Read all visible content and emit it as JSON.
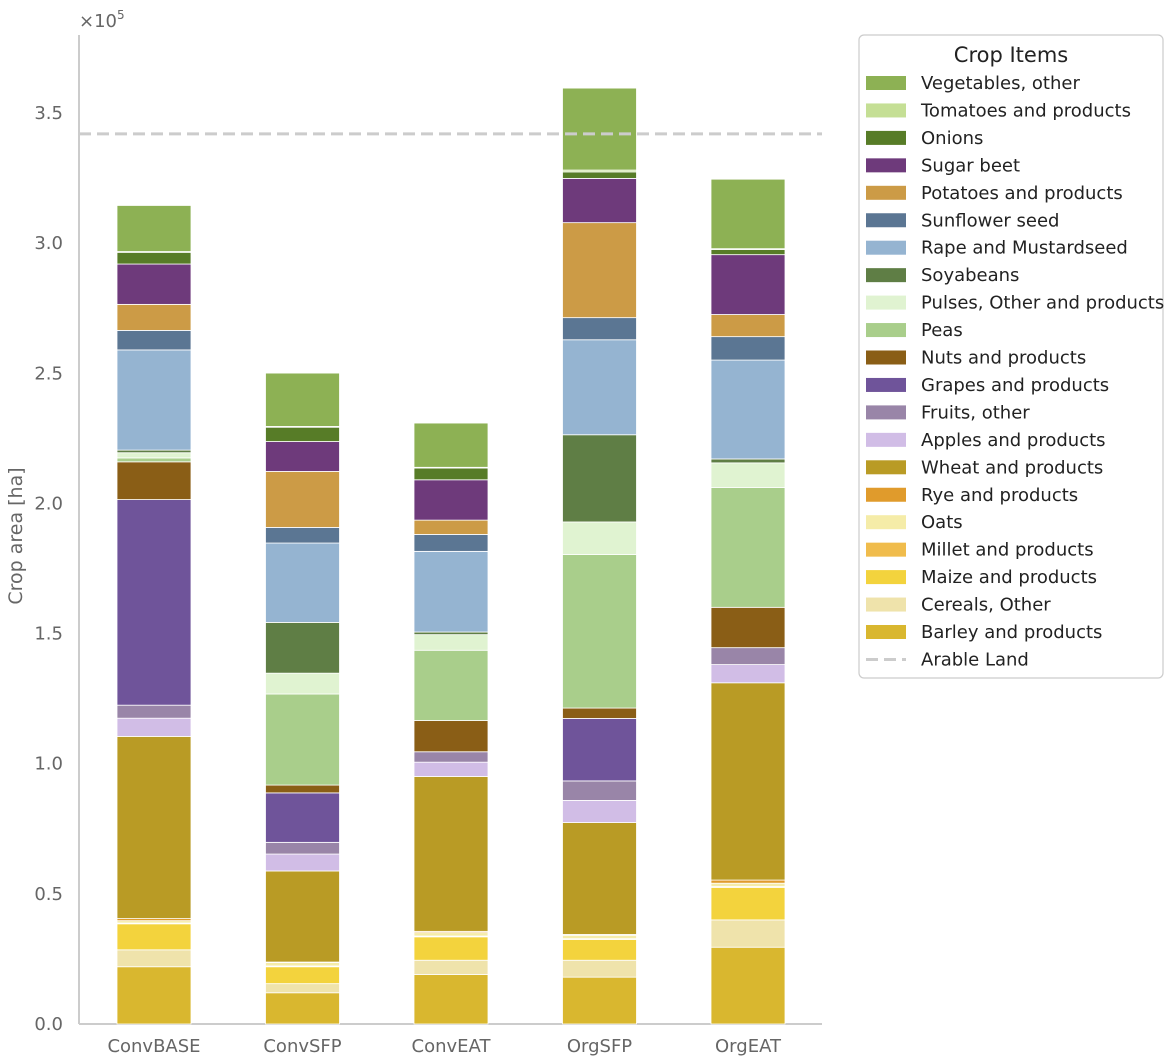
{
  "chart_data": {
    "type": "bar",
    "stacked": true,
    "title": "",
    "xlabel": "",
    "ylabel": "Crop area [ha]",
    "y_scale_label": "×10",
    "y_scale_exponent": "5",
    "ylim": [
      0,
      380000
    ],
    "yticks": [
      0,
      50000,
      100000,
      150000,
      200000,
      250000,
      300000,
      350000
    ],
    "ytick_labels": [
      "0.0",
      "0.5",
      "1.0",
      "1.5",
      "2.0",
      "2.5",
      "3.0",
      "3.5"
    ],
    "grid": false,
    "categories": [
      "ConvBASE",
      "ConvSFP",
      "ConvEAT",
      "OrgSFP",
      "OrgEAT"
    ],
    "reference_line": {
      "name": "Arable Land",
      "value": 342000,
      "color": "#cccccc",
      "style": "dashed"
    },
    "legend": {
      "title": "Crop Items",
      "position": "right"
    },
    "series": [
      {
        "name": "Barley and products",
        "color": "#d9b72f",
        "values": [
          22000,
          12000,
          19000,
          18000,
          29500
        ]
      },
      {
        "name": "Cereals, Other",
        "color": "#efe3ab",
        "values": [
          6500,
          3500,
          5500,
          6500,
          10500
        ]
      },
      {
        "name": "Maize and products",
        "color": "#f3d33d",
        "values": [
          10000,
          6500,
          9000,
          8000,
          12500
        ]
      },
      {
        "name": "Millet and products",
        "color": "#f0bc4c",
        "values": [
          300,
          300,
          300,
          300,
          300
        ]
      },
      {
        "name": "Oats",
        "color": "#f5eca8",
        "values": [
          900,
          1300,
          1300,
          1300,
          1300
        ]
      },
      {
        "name": "Rye and products",
        "color": "#e09b2c",
        "values": [
          800,
          200,
          500,
          300,
          1200
        ]
      },
      {
        "name": "Wheat and products",
        "color": "#b99b25",
        "values": [
          70000,
          35000,
          59500,
          43000,
          75800
        ]
      },
      {
        "name": "Apples and products",
        "color": "#d1bde6",
        "values": [
          7000,
          6500,
          5500,
          8500,
          7000
        ]
      },
      {
        "name": "Fruits, other",
        "color": "#9985a8",
        "values": [
          5000,
          4500,
          4000,
          7500,
          6500
        ]
      },
      {
        "name": "Grapes and products",
        "color": "#6f549a",
        "values": [
          79000,
          19000,
          0,
          24000,
          0
        ]
      },
      {
        "name": "Nuts and products",
        "color": "#8a5e16",
        "values": [
          14500,
          3000,
          12000,
          4000,
          15500
        ]
      },
      {
        "name": "Peas",
        "color": "#a9ce8b",
        "values": [
          1500,
          35000,
          27000,
          59000,
          46000
        ]
      },
      {
        "name": "Pulses, Other and products",
        "color": "#e0f3d1",
        "values": [
          2000,
          8000,
          6000,
          12500,
          9500
        ]
      },
      {
        "name": "Soyabeans",
        "color": "#5f7e45",
        "values": [
          1000,
          19500,
          1000,
          33500,
          1500
        ]
      },
      {
        "name": "Rape and Mustardseed",
        "color": "#95b4d1",
        "values": [
          38500,
          30500,
          31000,
          36500,
          38000
        ]
      },
      {
        "name": "Sunflower seed",
        "color": "#5b7693",
        "values": [
          7500,
          6000,
          6500,
          8500,
          9000
        ]
      },
      {
        "name": "Potatoes and products",
        "color": "#cc9b46",
        "values": [
          10000,
          21500,
          5500,
          36500,
          8500
        ]
      },
      {
        "name": "Sugar beet",
        "color": "#6e3a7b",
        "values": [
          15500,
          11500,
          15500,
          17000,
          23000
        ]
      },
      {
        "name": "Onions",
        "color": "#577c27",
        "values": [
          4500,
          5500,
          4500,
          2500,
          2000
        ]
      },
      {
        "name": "Tomatoes and products",
        "color": "#c5df95",
        "values": [
          300,
          300,
          300,
          700,
          300
        ]
      },
      {
        "name": "Vegetables, other",
        "color": "#8db154",
        "values": [
          17700,
          20500,
          17000,
          31500,
          26700
        ]
      }
    ]
  }
}
